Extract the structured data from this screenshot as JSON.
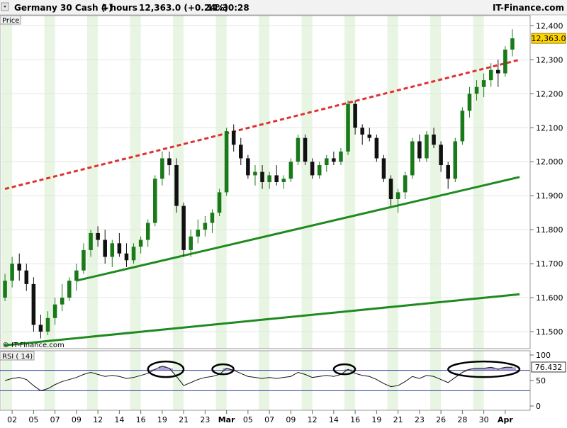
{
  "header": {
    "instrument": "Germany 30 Cash (-)",
    "interval": "4 hours",
    "quote": "12,363.0 (+0.24%)",
    "time": "11:30:28",
    "brand": "IT-Finance.com"
  },
  "price_panel": {
    "label": "Price",
    "copyright": "© IT-Finance.com",
    "last_price_label": "12,363.0"
  },
  "rsi_panel": {
    "label": "RSI ( 14)",
    "value_label": "76.432"
  },
  "colors": {
    "bull_candle": "#1a7a1a",
    "bear_candle": "#111111",
    "resistance": "#e03030",
    "support": "#1f8a1f",
    "rsi_line": "#111111",
    "rsi_fill_hi": "#7b68c8",
    "rsi_fill_lo": "#3b4fc8",
    "last_price_bg": "#ffd400",
    "band": "#e8f5e2"
  },
  "chart_data": [
    {
      "type": "candlestick",
      "title": "Germany 30 Cash (-) 4 hours",
      "ylim": [
        11450,
        12430
      ],
      "y_ticks": [
        11500,
        11600,
        11700,
        11800,
        11900,
        12000,
        12100,
        12200,
        12300,
        12400
      ],
      "x_tick_labels": [
        "02",
        "05",
        "07",
        "09",
        "12",
        "14",
        "16",
        "19",
        "21",
        "23",
        "Mar",
        "05",
        "07",
        "09",
        "12",
        "14",
        "16",
        "19",
        "21",
        "23",
        "26",
        "28",
        "30",
        "Apr"
      ],
      "last_price": 12363.0,
      "candles": [
        [
          11600,
          11670,
          11590,
          11650
        ],
        [
          11650,
          11720,
          11630,
          11700
        ],
        [
          11700,
          11730,
          11650,
          11680
        ],
        [
          11680,
          11700,
          11620,
          11640
        ],
        [
          11640,
          11660,
          11500,
          11520
        ],
        [
          11520,
          11550,
          11480,
          11500
        ],
        [
          11500,
          11560,
          11490,
          11540
        ],
        [
          11540,
          11600,
          11520,
          11580
        ],
        [
          11580,
          11640,
          11560,
          11600
        ],
        [
          11600,
          11660,
          11590,
          11650
        ],
        [
          11650,
          11700,
          11620,
          11680
        ],
        [
          11680,
          11760,
          11670,
          11740
        ],
        [
          11740,
          11800,
          11720,
          11790
        ],
        [
          11790,
          11810,
          11750,
          11770
        ],
        [
          11770,
          11800,
          11700,
          11720
        ],
        [
          11720,
          11770,
          11690,
          11760
        ],
        [
          11760,
          11790,
          11720,
          11730
        ],
        [
          11730,
          11760,
          11690,
          11710
        ],
        [
          11710,
          11760,
          11700,
          11750
        ],
        [
          11750,
          11780,
          11730,
          11770
        ],
        [
          11770,
          11830,
          11750,
          11820
        ],
        [
          11820,
          11960,
          11810,
          11950
        ],
        [
          11950,
          12030,
          11930,
          12010
        ],
        [
          12010,
          12030,
          11960,
          11990
        ],
        [
          11990,
          12010,
          11850,
          11870
        ],
        [
          11870,
          11880,
          11720,
          11740
        ],
        [
          11740,
          11800,
          11720,
          11780
        ],
        [
          11780,
          11830,
          11760,
          11800
        ],
        [
          11800,
          11840,
          11780,
          11820
        ],
        [
          11820,
          11860,
          11790,
          11850
        ],
        [
          11850,
          11920,
          11840,
          11910
        ],
        [
          11910,
          12100,
          11900,
          12090
        ],
        [
          12090,
          12110,
          12030,
          12050
        ],
        [
          12050,
          12070,
          11990,
          12010
        ],
        [
          12010,
          12020,
          11950,
          11960
        ],
        [
          11960,
          11990,
          11930,
          11970
        ],
        [
          11970,
          11990,
          11920,
          11940
        ],
        [
          11940,
          11970,
          11920,
          11960
        ],
        [
          11960,
          11990,
          11930,
          11940
        ],
        [
          11940,
          11960,
          11920,
          11950
        ],
        [
          11950,
          12010,
          11940,
          12000
        ],
        [
          12000,
          12080,
          11990,
          12070
        ],
        [
          12070,
          12080,
          11990,
          12000
        ],
        [
          12000,
          12010,
          11950,
          11960
        ],
        [
          11960,
          12000,
          11950,
          11990
        ],
        [
          11990,
          12020,
          11970,
          12010
        ],
        [
          12010,
          12030,
          11990,
          12000
        ],
        [
          12000,
          12040,
          11990,
          12030
        ],
        [
          12030,
          12180,
          12020,
          12170
        ],
        [
          12170,
          12180,
          12080,
          12100
        ],
        [
          12100,
          12110,
          12050,
          12080
        ],
        [
          12080,
          12100,
          12060,
          12070
        ],
        [
          12070,
          12080,
          12000,
          12010
        ],
        [
          12010,
          12020,
          11940,
          11950
        ],
        [
          11950,
          11960,
          11870,
          11890
        ],
        [
          11890,
          11920,
          11850,
          11910
        ],
        [
          11910,
          11970,
          11890,
          11960
        ],
        [
          11960,
          12070,
          11950,
          12060
        ],
        [
          12060,
          12080,
          12000,
          12010
        ],
        [
          12010,
          12090,
          12000,
          12080
        ],
        [
          12080,
          12100,
          12040,
          12050
        ],
        [
          12050,
          12060,
          11970,
          11990
        ],
        [
          11990,
          12000,
          11920,
          11950
        ],
        [
          11950,
          12070,
          11940,
          12060
        ],
        [
          12060,
          12160,
          12050,
          12150
        ],
        [
          12150,
          12220,
          12130,
          12200
        ],
        [
          12200,
          12240,
          12180,
          12220
        ],
        [
          12220,
          12260,
          12190,
          12240
        ],
        [
          12240,
          12290,
          12220,
          12270
        ],
        [
          12270,
          12300,
          12220,
          12260
        ],
        [
          12260,
          12340,
          12250,
          12330
        ],
        [
          12330,
          12390,
          12310,
          12363
        ]
      ],
      "support_line": {
        "from": [
          10,
          11650
        ],
        "to": [
          72,
          11955
        ]
      },
      "lower_support_line": {
        "from": [
          0,
          11460
        ],
        "to": [
          72,
          11610
        ]
      },
      "resistance_line": {
        "from": [
          0,
          11920
        ],
        "to": [
          72,
          12300
        ]
      }
    },
    {
      "type": "line",
      "title": "RSI ( 14)",
      "ylim": [
        0,
        100
      ],
      "y_ticks": [
        0,
        50,
        100
      ],
      "levels": [
        70,
        30
      ],
      "last_value": 76.432,
      "values": [
        50,
        54,
        56,
        52,
        40,
        30,
        34,
        42,
        48,
        52,
        56,
        62,
        66,
        62,
        58,
        60,
        58,
        54,
        56,
        60,
        64,
        72,
        78,
        74,
        58,
        40,
        46,
        52,
        56,
        58,
        62,
        74,
        70,
        64,
        58,
        56,
        54,
        56,
        54,
        56,
        58,
        66,
        62,
        56,
        58,
        60,
        58,
        62,
        72,
        64,
        60,
        58,
        52,
        44,
        38,
        40,
        48,
        58,
        54,
        60,
        58,
        52,
        46,
        56,
        66,
        72,
        74,
        74,
        76,
        72,
        76,
        76
      ],
      "highlights": [
        {
          "from": 21,
          "to": 24
        },
        {
          "from": 30,
          "to": 31
        },
        {
          "from": 47,
          "to": 48
        },
        {
          "from": 63,
          "to": 71
        }
      ]
    }
  ]
}
